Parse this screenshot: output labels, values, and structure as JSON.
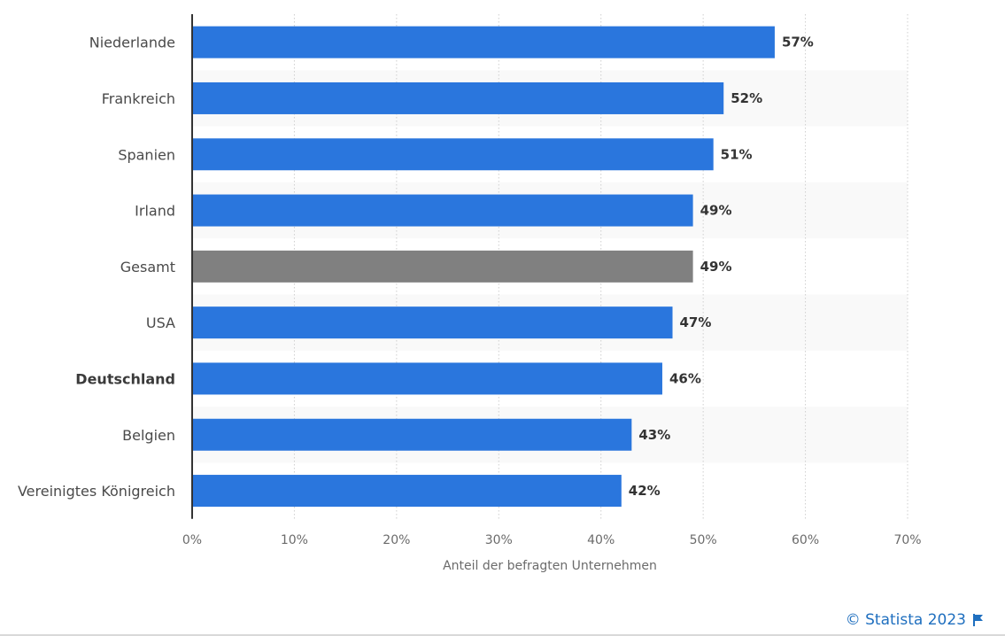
{
  "chart_data": {
    "type": "bar",
    "orientation": "horizontal",
    "categories": [
      "Niederlande",
      "Frankreich",
      "Spanien",
      "Irland",
      "Gesamt",
      "USA",
      "Deutschland",
      "Belgien",
      "Vereinigtes Königreich"
    ],
    "values": [
      57,
      52,
      51,
      49,
      49,
      47,
      46,
      43,
      42
    ],
    "value_labels": [
      "57%",
      "52%",
      "51%",
      "49%",
      "49%",
      "47%",
      "46%",
      "43%",
      "42%"
    ],
    "bar_colors": [
      "#2a76dd",
      "#2a76dd",
      "#2a76dd",
      "#2a76dd",
      "#808080",
      "#2a76dd",
      "#2a76dd",
      "#2a76dd",
      "#2a76dd"
    ],
    "bold_categories": [
      "Deutschland"
    ],
    "xlim": [
      0,
      70
    ],
    "xticks": [
      0,
      10,
      20,
      30,
      40,
      50,
      60,
      70
    ],
    "xtick_labels": [
      "0%",
      "10%",
      "20%",
      "30%",
      "40%",
      "50%",
      "60%",
      "70%"
    ],
    "xlabel": "Anteil der befragten Unternehmen",
    "ylabel": "",
    "grid": true,
    "alternating_row_shading": true
  },
  "footer": {
    "credit": "© Statista 2023",
    "flag_icon": "flag-icon"
  },
  "colors": {
    "accent": "#2a76dd",
    "highlight": "#808080",
    "credit": "#1f6fbf"
  }
}
